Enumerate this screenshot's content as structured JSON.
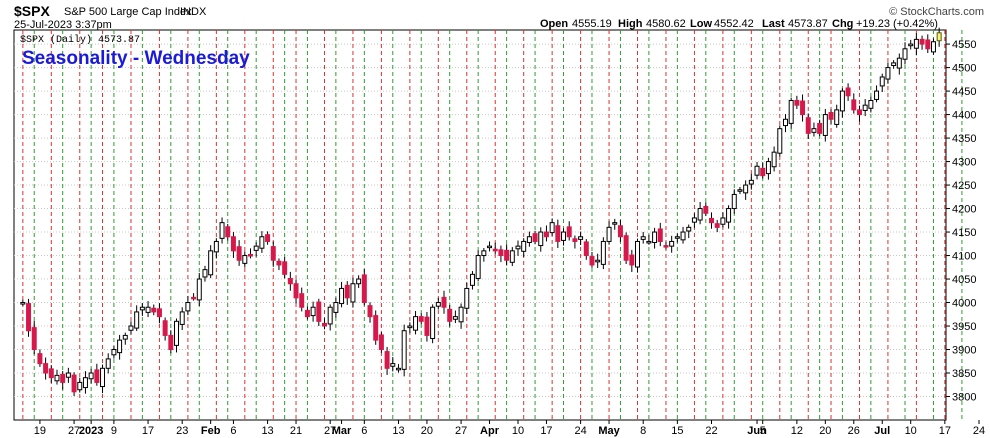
{
  "header": {
    "symbol": "$SPX",
    "name": "S&P 500 Large Cap Index",
    "exchange": "INDX",
    "datetime": "25-Jul-2023 3:37pm",
    "ohlc": {
      "open_label": "Open",
      "open": "4555.19",
      "high_label": "High",
      "high": "4580.62",
      "low_label": "Low",
      "low": "4552.42",
      "last_label": "Last",
      "last": "4573.87",
      "chg_label": "Chg",
      "chg": "+19.23 (+0.42%)"
    },
    "watermark": "© StockCharts.com",
    "legend": "$SPX (Daily) 4573.87"
  },
  "chart_data": {
    "type": "candlestick",
    "title": "Seasonality - Wednesday",
    "ylim": [
      3750,
      4580
    ],
    "y_ticks": [
      3800,
      3850,
      3900,
      3950,
      4000,
      4050,
      4100,
      4150,
      4200,
      4250,
      4300,
      4350,
      4400,
      4450,
      4500,
      4550
    ],
    "x_ticks": [
      {
        "i": 3,
        "label": "19",
        "bold": false
      },
      {
        "i": 9,
        "label": "27",
        "bold": false
      },
      {
        "i": 12,
        "label": "2023",
        "bold": true
      },
      {
        "i": 16,
        "label": "9",
        "bold": false
      },
      {
        "i": 22,
        "label": "17",
        "bold": false
      },
      {
        "i": 28,
        "label": "23",
        "bold": false
      },
      {
        "i": 33,
        "label": "Feb",
        "bold": true
      },
      {
        "i": 37,
        "label": "6",
        "bold": false
      },
      {
        "i": 43,
        "label": "13",
        "bold": false
      },
      {
        "i": 48,
        "label": "21",
        "bold": false
      },
      {
        "i": 54,
        "label": "27",
        "bold": false
      },
      {
        "i": 56,
        "label": "Mar",
        "bold": true
      },
      {
        "i": 60,
        "label": "6",
        "bold": false
      },
      {
        "i": 66,
        "label": "13",
        "bold": false
      },
      {
        "i": 71,
        "label": "20",
        "bold": false
      },
      {
        "i": 77,
        "label": "27",
        "bold": false
      },
      {
        "i": 82,
        "label": "Apr",
        "bold": true
      },
      {
        "i": 87,
        "label": "10",
        "bold": false
      },
      {
        "i": 92,
        "label": "17",
        "bold": false
      },
      {
        "i": 98,
        "label": "24",
        "bold": false
      },
      {
        "i": 103,
        "label": "May",
        "bold": true
      },
      {
        "i": 109,
        "label": "8",
        "bold": false
      },
      {
        "i": 115,
        "label": "15",
        "bold": false
      },
      {
        "i": 121,
        "label": "22",
        "bold": false
      },
      {
        "i": 129,
        "label": "Jun",
        "bold": true
      },
      {
        "i": 130,
        "label": "5",
        "bold": false
      },
      {
        "i": 136,
        "label": "12",
        "bold": false
      },
      {
        "i": 141,
        "label": "20",
        "bold": false
      },
      {
        "i": 146,
        "label": "26",
        "bold": false
      },
      {
        "i": 151,
        "label": "Jul",
        "bold": true
      },
      {
        "i": 156,
        "label": "10",
        "bold": false
      },
      {
        "i": 162,
        "label": "17",
        "bold": false
      },
      {
        "i": 168,
        "label": "24",
        "bold": false
      }
    ],
    "wednesday_lines": [
      0,
      5,
      10,
      14,
      19,
      24,
      29,
      34,
      39,
      44,
      48,
      53,
      58,
      63,
      68,
      73,
      78,
      83,
      88,
      93,
      98,
      103,
      108,
      113,
      118,
      123,
      128,
      133,
      138,
      142,
      147,
      152,
      157,
      162
    ],
    "green_lines": [
      2,
      7,
      12,
      16,
      21,
      26,
      31,
      36,
      41,
      46,
      50,
      55,
      60,
      65,
      70,
      75,
      80,
      85,
      90,
      95,
      100,
      105,
      110,
      115,
      120,
      125,
      130,
      135,
      140,
      144,
      149,
      155,
      160,
      165
    ],
    "closes": [
      4000,
      3940,
      3900,
      3870,
      3850,
      3840,
      3845,
      3830,
      3850,
      3810,
      3830,
      3840,
      3850,
      3830,
      3860,
      3880,
      3900,
      3920,
      3930,
      3950,
      3980,
      3990,
      3990,
      3980,
      3970,
      3930,
      3900,
      3960,
      3980,
      4000,
      4010,
      4050,
      4070,
      4110,
      4130,
      4170,
      4140,
      4110,
      4090,
      4100,
      4100,
      4120,
      4140,
      4130,
      4090,
      4080,
      4060,
      4040,
      4010,
      3990,
      3970,
      3990,
      3960,
      3950,
      3990,
      4000,
      4030,
      4010,
      4040,
      4050,
      4000,
      3970,
      3920,
      3900,
      3860,
      3870,
      3860,
      3940,
      3950,
      3970,
      3960,
      3930,
      3990,
      4000,
      3990,
      3960,
      3970,
      3990,
      4030,
      4060,
      4100,
      4110,
      4120,
      4110,
      4100,
      4090,
      4110,
      4120,
      4130,
      4140,
      4130,
      4150,
      4140,
      4170,
      4130,
      4150,
      4140,
      4130,
      4140,
      4100,
      4080,
      4090,
      4130,
      4160,
      4170,
      4140,
      4090,
      4080,
      4130,
      4140,
      4130,
      4150,
      4130,
      4120,
      4130,
      4140,
      4150,
      4160,
      4180,
      4200,
      4190,
      4170,
      4160,
      4180,
      4200,
      4230,
      4240,
      4250,
      4260,
      4290,
      4270,
      4300,
      4320,
      4370,
      4390,
      4430,
      4420,
      4400,
      4360,
      4370,
      4360,
      4400,
      4390,
      4410,
      4450,
      4440,
      4410,
      4400,
      4420,
      4430,
      4450,
      4480,
      4500,
      4510,
      4520,
      4540,
      4550,
      4560,
      4550,
      4540,
      4555,
      4574
    ]
  }
}
